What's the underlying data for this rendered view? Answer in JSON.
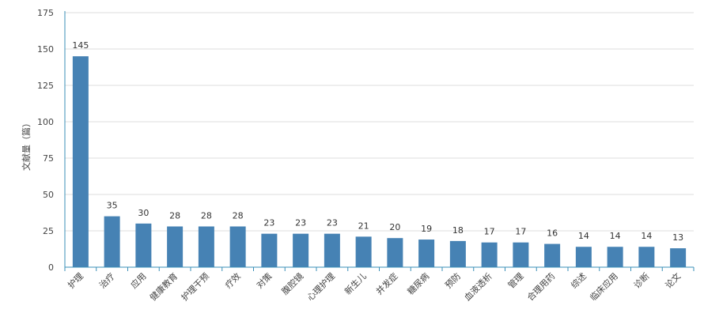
{
  "chart_data": {
    "type": "bar",
    "title": "",
    "xlabel": "",
    "ylabel": "文献量（篇）",
    "categories": [
      "护理",
      "治疗",
      "应用",
      "健康教育",
      "护理干预",
      "疗效",
      "对策",
      "腹腔镜",
      "心理护理",
      "新生儿",
      "并发症",
      "糖尿病",
      "预防",
      "血液透析",
      "管理",
      "合理用药",
      "综述",
      "临床应用",
      "诊断",
      "论文"
    ],
    "values": [
      145,
      35,
      30,
      28,
      28,
      28,
      23,
      23,
      23,
      21,
      20,
      19,
      18,
      17,
      17,
      16,
      14,
      14,
      14,
      13
    ],
    "ylim": [
      0,
      175
    ],
    "yticks": [
      0,
      25,
      50,
      75,
      100,
      125,
      150,
      175
    ],
    "grid": true,
    "legend": "none",
    "bar_color": "#4682b4",
    "grid_color": "#dddddd",
    "axis_color": "#3a8fb7"
  }
}
